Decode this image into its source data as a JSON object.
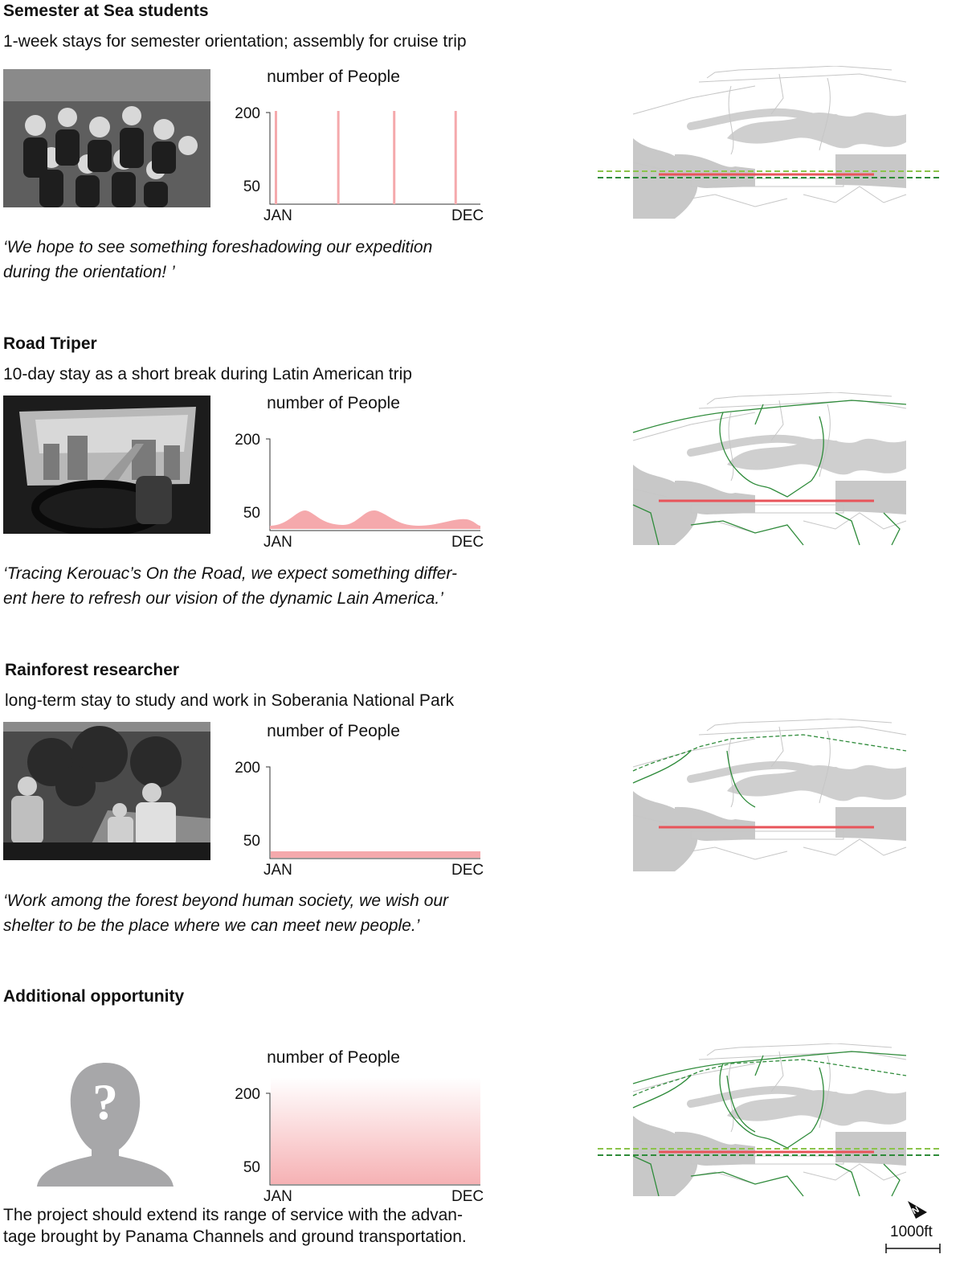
{
  "sections": [
    {
      "title": "Semester at Sea students",
      "subtitle": "1-week stays for semester orientation; assembly for cruise trip",
      "photo_icon": "group-photo",
      "quote_lines": [
        "‘We hope to see something foreshadowing our expedition",
        "during the orientation! ’"
      ],
      "chart": {
        "type": "spikes",
        "ylabel": "number of People",
        "yticks": [
          "200",
          "50"
        ],
        "xticks": [
          "JAN",
          "DEC"
        ],
        "spike_months": [
          0.15,
          3.5,
          6.5,
          9.8
        ]
      },
      "map_routes": "sea"
    },
    {
      "title": "Road Triper",
      "subtitle": "10-day stay as a short break during Latin American trip",
      "photo_icon": "car-windshield-photo",
      "quote_lines": [
        "‘Tracing Kerouac’s On the Road, we expect something differ-",
        "ent here to refresh our vision of the dynamic Lain America.’"
      ],
      "chart": {
        "type": "area",
        "ylabel": "number of People",
        "yticks": [
          "200",
          "50"
        ],
        "xticks": [
          "JAN",
          "DEC"
        ]
      },
      "map_routes": "road"
    },
    {
      "title": "Rainforest researcher",
      "subtitle": "long-term stay to study and work in Soberania National Park",
      "photo_icon": "boat-researchers-photo",
      "quote_lines": [
        "‘Work among the forest beyond human society, we wish our",
        "shelter to be the place where we can meet new people.’"
      ],
      "chart": {
        "type": "flat",
        "ylabel": "number of People",
        "yticks": [
          "200",
          "50"
        ],
        "xticks": [
          "JAN",
          "DEC"
        ]
      },
      "map_routes": "forest"
    },
    {
      "title": "Additional opportunity",
      "subtitle": "",
      "photo_icon": "unknown-person-icon",
      "body_lines": [
        "The project should extend its range of service with the advan-",
        "tage brought by Panama Channels and ground transportation."
      ],
      "chart": {
        "type": "gradient",
        "ylabel": "number of People",
        "yticks": [
          "200",
          "50"
        ],
        "xticks": [
          "JAN",
          "DEC"
        ]
      },
      "map_routes": "all"
    }
  ],
  "scale_bar": {
    "label": "1000ft"
  },
  "colors": {
    "accent": "#e8545a",
    "pink": "#f5a9ac",
    "route_green": "#2e8b3a",
    "sea_green": "#8bc34a",
    "land_gray": "#c8c8c8"
  }
}
